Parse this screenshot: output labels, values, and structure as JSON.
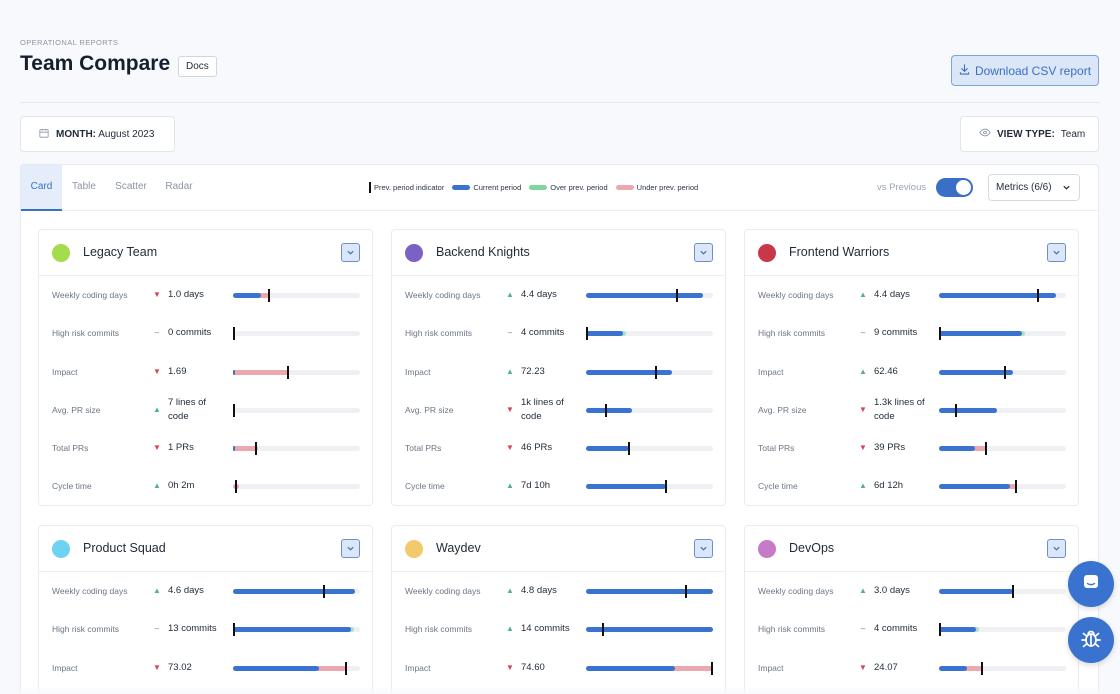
{
  "header": {
    "breadcrumb": "OPERATIONAL REPORTS",
    "title": "Team Compare",
    "docs_label": "Docs",
    "download_label": "Download CSV report"
  },
  "filters": {
    "month_label": "MONTH:",
    "month_value": "August 2023",
    "view_label": "VIEW TYPE:",
    "view_value": "Team"
  },
  "tabs": [
    "Card",
    "Table",
    "Scatter",
    "Radar"
  ],
  "active_tab": "Card",
  "legend": {
    "prev": "Prev. period indicator",
    "current": "Current period",
    "over": "Over prev. period",
    "under": "Under prev. period"
  },
  "controls": {
    "vs_previous": "vs Previous",
    "vs_previous_on": true,
    "metrics_select": "Metrics (6/6)"
  },
  "colors": {
    "current": "#3a72d0",
    "over": "#a9e3bf",
    "under": "#eda7ae",
    "accent": "#3a6fc6"
  },
  "teams": [
    {
      "name": "Legacy Team",
      "color": "#a4dc4c",
      "metrics": [
        {
          "label": "Weekly coding days",
          "trend": "down",
          "value": "1.0 days",
          "current": 0.22,
          "prev": 0.28
        },
        {
          "label": "High risk commits",
          "trend": "flat",
          "value": "0 commits",
          "current": 0.0,
          "prev": 0.0
        },
        {
          "label": "Impact",
          "trend": "down",
          "value": "1.69",
          "current": 0.01,
          "prev": 0.43
        },
        {
          "label": "Avg. PR size",
          "trend": "up",
          "value": "7 lines of code",
          "current": 0.0,
          "prev": 0.0
        },
        {
          "label": "Total PRs",
          "trend": "down",
          "value": "1 PRs",
          "current": 0.01,
          "prev": 0.18
        },
        {
          "label": "Cycle time",
          "trend": "up",
          "value": "0h 2m",
          "current": 0.0,
          "prev": 0.02
        }
      ]
    },
    {
      "name": "Backend Knights",
      "color": "#7b61c4",
      "metrics": [
        {
          "label": "Weekly coding days",
          "trend": "up",
          "value": "4.4 days",
          "current": 0.92,
          "prev": 0.72
        },
        {
          "label": "High risk commits",
          "trend": "flat",
          "value": "4 commits",
          "current": 0.29,
          "prev": 0.0
        },
        {
          "label": "Impact",
          "trend": "up",
          "value": "72.23",
          "current": 0.68,
          "prev": 0.55
        },
        {
          "label": "Avg. PR size",
          "trend": "down",
          "value": "1k lines of code",
          "current": 0.36,
          "prev": 0.16
        },
        {
          "label": "Total PRs",
          "trend": "down",
          "value": "46 PRs",
          "current": 0.34,
          "prev": 0.34
        },
        {
          "label": "Cycle time",
          "trend": "up",
          "value": "7d 10h",
          "current": 0.63,
          "prev": 0.63
        }
      ]
    },
    {
      "name": "Frontend Warriors",
      "color": "#c9374a",
      "metrics": [
        {
          "label": "Weekly coding days",
          "trend": "up",
          "value": "4.4 days",
          "current": 0.92,
          "prev": 0.78
        },
        {
          "label": "High risk commits",
          "trend": "flat",
          "value": "9 commits",
          "current": 0.65,
          "prev": 0.0
        },
        {
          "label": "Impact",
          "trend": "up",
          "value": "62.46",
          "current": 0.58,
          "prev": 0.52
        },
        {
          "label": "Avg. PR size",
          "trend": "down",
          "value": "1.3k lines of code",
          "current": 0.46,
          "prev": 0.13
        },
        {
          "label": "Total PRs",
          "trend": "down",
          "value": "39 PRs",
          "current": 0.28,
          "prev": 0.37
        },
        {
          "label": "Cycle time",
          "trend": "up",
          "value": "6d 12h",
          "current": 0.56,
          "prev": 0.61
        }
      ]
    },
    {
      "name": "Product Squad",
      "color": "#6fd2f3",
      "metrics": [
        {
          "label": "Weekly coding days",
          "trend": "up",
          "value": "4.6 days",
          "current": 0.96,
          "prev": 0.72
        },
        {
          "label": "High risk commits",
          "trend": "flat",
          "value": "13 commits",
          "current": 0.93,
          "prev": 0.0
        },
        {
          "label": "Impact",
          "trend": "down",
          "value": "73.02",
          "current": 0.68,
          "prev": 0.89
        }
      ]
    },
    {
      "name": "Waydev",
      "color": "#f3ca6b",
      "metrics": [
        {
          "label": "Weekly coding days",
          "trend": "up",
          "value": "4.8 days",
          "current": 1.0,
          "prev": 0.79
        },
        {
          "label": "High risk commits",
          "trend": "up",
          "value": "14 commits",
          "current": 1.0,
          "prev": 0.13
        },
        {
          "label": "Impact",
          "trend": "down",
          "value": "74.60",
          "current": 0.7,
          "prev": 1.0
        }
      ]
    },
    {
      "name": "DevOps",
      "color": "#c67bc8",
      "metrics": [
        {
          "label": "Weekly coding days",
          "trend": "up",
          "value": "3.0 days",
          "current": 0.58,
          "prev": 0.58
        },
        {
          "label": "High risk commits",
          "trend": "flat",
          "value": "4 commits",
          "current": 0.29,
          "prev": 0.0
        },
        {
          "label": "Impact",
          "trend": "down",
          "value": "24.07",
          "current": 0.22,
          "prev": 0.34
        }
      ]
    }
  ]
}
